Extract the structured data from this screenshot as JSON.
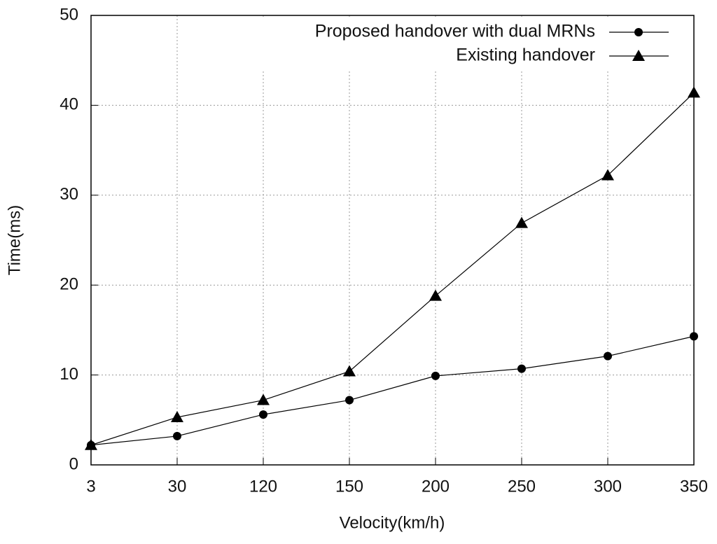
{
  "chart_data": {
    "type": "line",
    "x_label": "Velocity(km/h)",
    "y_label": "Time(ms)",
    "categories": [
      "3",
      "30",
      "120",
      "150",
      "200",
      "250",
      "300",
      "350"
    ],
    "series": [
      {
        "name": "Proposed handover with dual MRNs",
        "color": "#000000",
        "marker": "circle",
        "values": [
          2.2,
          3.2,
          5.6,
          7.2,
          9.9,
          10.7,
          12.1,
          14.3
        ]
      },
      {
        "name": "Existing handover",
        "color": "#000000",
        "marker": "triangle",
        "values": [
          2.2,
          5.3,
          7.2,
          10.4,
          18.8,
          26.9,
          32.2,
          41.4
        ]
      }
    ],
    "ylim": [
      0,
      50
    ],
    "yticks": [
      0,
      10,
      20,
      30,
      40,
      50
    ],
    "grid": true,
    "legend": "upper right"
  }
}
